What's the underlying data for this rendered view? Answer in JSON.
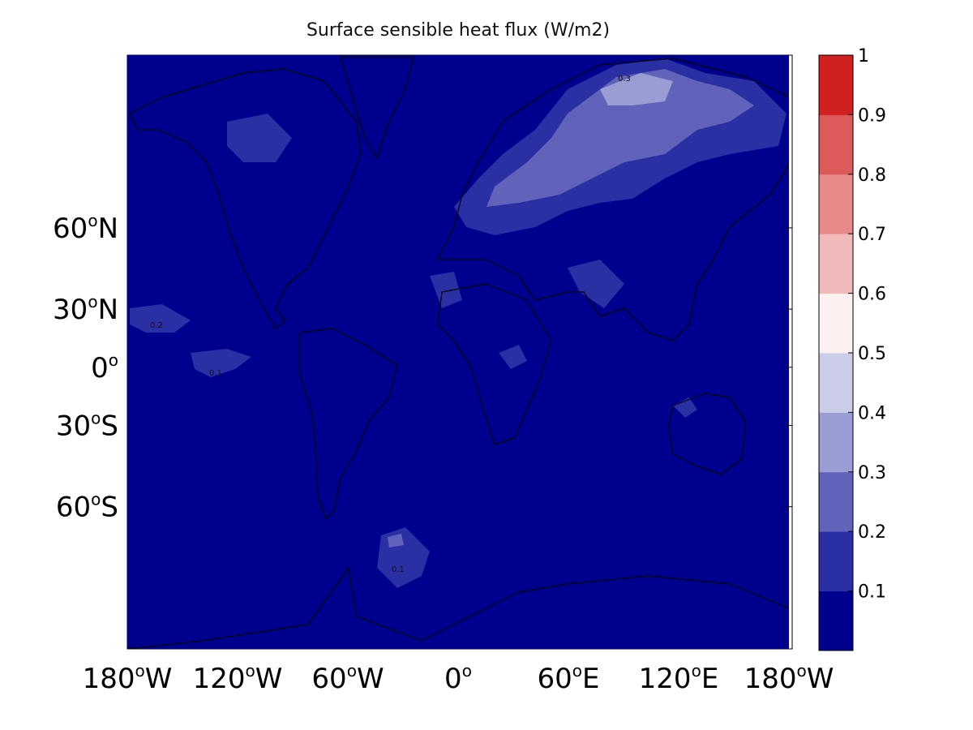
{
  "title": "Surface sensible heat flux (W/m2)",
  "map": {
    "projection": "Mercator",
    "background_color": "#00008f",
    "lon_ticks": [
      {
        "lon": -180,
        "num": "180",
        "hemi": "W"
      },
      {
        "lon": -120,
        "num": "120",
        "hemi": "W"
      },
      {
        "lon": -60,
        "num": "60",
        "hemi": "W"
      },
      {
        "lon": 0,
        "num": "0",
        "hemi": ""
      },
      {
        "lon": 60,
        "num": "60",
        "hemi": "E"
      },
      {
        "lon": 120,
        "num": "120",
        "hemi": "E"
      },
      {
        "lon": 180,
        "num": "180",
        "hemi": "W"
      }
    ],
    "lat_ticks": [
      {
        "lat": 60,
        "num": "60",
        "hemi": "N"
      },
      {
        "lat": 30,
        "num": "30",
        "hemi": "N"
      },
      {
        "lat": 0,
        "num": "0",
        "hemi": ""
      },
      {
        "lat": -30,
        "num": "30",
        "hemi": "S"
      },
      {
        "lat": -60,
        "num": "60",
        "hemi": "S"
      }
    ],
    "contour_labels": [
      "0.1",
      "0.2",
      "0.3"
    ]
  },
  "colorbar": {
    "labels": [
      "0.1",
      "0.2",
      "0.3",
      "0.4",
      "0.5",
      "0.6",
      "0.7",
      "0.8",
      "0.9",
      "1"
    ],
    "colors": [
      "#00008f",
      "#2a2fa3",
      "#6063b9",
      "#9a9dd3",
      "#cbcce8",
      "#fcf0f0",
      "#f0baba",
      "#e68a8a",
      "#dd5a5a",
      "#d02020"
    ]
  }
}
